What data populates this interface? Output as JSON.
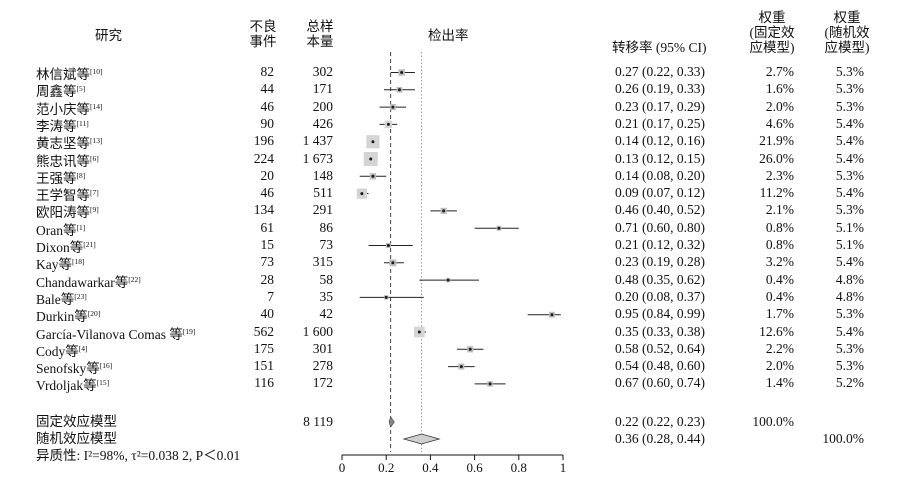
{
  "headers": {
    "study": "研究",
    "events_l1": "不良",
    "events_l2": "事件",
    "total_l1": "总样",
    "total_l2": "本量",
    "plot": "检出率",
    "rate": "转移率 (95% CI)",
    "wf_l1": "权重",
    "wf_l2": "(固定效",
    "wf_l3": "应模型)",
    "wr_l1": "权重",
    "wr_l2": "(随机效",
    "wr_l3": "应模型)"
  },
  "studies": [
    {
      "name": "林信斌等",
      "ref": "[10]",
      "events": "82",
      "total": "302",
      "ci": "0.27 (0.22, 0.33)",
      "w_fixed": "2.7%",
      "w_random": "5.3%"
    },
    {
      "name": "周鑫等",
      "ref": "[5]",
      "events": "44",
      "total": "171",
      "ci": "0.26 (0.19, 0.33)",
      "w_fixed": "1.6%",
      "w_random": "5.3%"
    },
    {
      "name": "范小庆等",
      "ref": "[14]",
      "events": "46",
      "total": "200",
      "ci": "0.23 (0.17, 0.29)",
      "w_fixed": "2.0%",
      "w_random": "5.3%"
    },
    {
      "name": "李涛等",
      "ref": "[11]",
      "events": "90",
      "total": "426",
      "ci": "0.21 (0.17, 0.25)",
      "w_fixed": "4.6%",
      "w_random": "5.4%"
    },
    {
      "name": "黄志坚等",
      "ref": "[13]",
      "events": "196",
      "total": "1 437",
      "ci": "0.14 (0.12, 0.16)",
      "w_fixed": "21.9%",
      "w_random": "5.4%"
    },
    {
      "name": "熊忠讯等",
      "ref": "[6]",
      "events": "224",
      "total": "1 673",
      "ci": "0.13 (0.12, 0.15)",
      "w_fixed": "26.0%",
      "w_random": "5.4%"
    },
    {
      "name": "王强等",
      "ref": "[8]",
      "events": "20",
      "total": "148",
      "ci": "0.14 (0.08, 0.20)",
      "w_fixed": "2.3%",
      "w_random": "5.3%"
    },
    {
      "name": "王学智等",
      "ref": "[7]",
      "events": "46",
      "total": "511",
      "ci": "0.09 (0.07, 0.12)",
      "w_fixed": "11.2%",
      "w_random": "5.4%"
    },
    {
      "name": "欧阳涛等",
      "ref": "[9]",
      "events": "134",
      "total": "291",
      "ci": "0.46 (0.40, 0.52)",
      "w_fixed": "2.1%",
      "w_random": "5.3%"
    },
    {
      "name": "Oran等",
      "ref": "[1]",
      "events": "61",
      "total": "86",
      "ci": "0.71 (0.60, 0.80)",
      "w_fixed": "0.8%",
      "w_random": "5.1%"
    },
    {
      "name": "Dixon等",
      "ref": "[21]",
      "events": "15",
      "total": "73",
      "ci": "0.21 (0.12, 0.32)",
      "w_fixed": "0.8%",
      "w_random": "5.1%"
    },
    {
      "name": "Kay等",
      "ref": "[18]",
      "events": "73",
      "total": "315",
      "ci": "0.23 (0.19, 0.28)",
      "w_fixed": "3.2%",
      "w_random": "5.4%"
    },
    {
      "name": "Chandawarkar等",
      "ref": "[22]",
      "events": "28",
      "total": "58",
      "ci": "0.48 (0.35, 0.62)",
      "w_fixed": "0.4%",
      "w_random": "4.8%"
    },
    {
      "name": "Bale等",
      "ref": "[23]",
      "events": "7",
      "total": "35",
      "ci": "0.20 (0.08, 0.37)",
      "w_fixed": "0.4%",
      "w_random": "4.8%"
    },
    {
      "name": "Durkin等",
      "ref": "[20]",
      "events": "40",
      "total": "42",
      "ci": "0.95 (0.84, 0.99)",
      "w_fixed": "1.7%",
      "w_random": "5.3%"
    },
    {
      "name": "García-Vilanova Comas 等",
      "ref": "[19]",
      "events": "562",
      "total": "1 600",
      "ci": "0.35 (0.33, 0.38)",
      "w_fixed": "12.6%",
      "w_random": "5.4%"
    },
    {
      "name": "Cody等",
      "ref": "[4]",
      "events": "175",
      "total": "301",
      "ci": "0.58 (0.52, 0.64)",
      "w_fixed": "2.2%",
      "w_random": "5.3%"
    },
    {
      "name": "Senofsky等",
      "ref": "[16]",
      "events": "151",
      "total": "278",
      "ci": "0.54 (0.48, 0.60)",
      "w_fixed": "2.0%",
      "w_random": "5.3%"
    },
    {
      "name": "Vrdoljak等",
      "ref": "[15]",
      "events": "116",
      "total": "172",
      "ci": "0.67 (0.60, 0.74)",
      "w_fixed": "1.4%",
      "w_random": "5.2%"
    }
  ],
  "summary": {
    "fixed_label": "固定效应模型",
    "fixed_total": "8 119",
    "fixed_ci": "0.22 (0.22, 0.23)",
    "fixed_weight": "100.0%",
    "random_label": "随机效应模型",
    "random_ci": "0.36 (0.28, 0.44)",
    "random_weight": "100.0%",
    "heterogeneity": "异质性: I²=98%, τ²=0.038 2, P＜0.01"
  },
  "chart_data": {
    "type": "forest",
    "xlim": [
      0,
      1
    ],
    "ticks": [
      "0",
      "0.2",
      "0.4",
      "0.6",
      "0.8",
      "1"
    ],
    "tick_values": [
      0,
      0.2,
      0.4,
      0.6,
      0.8,
      1
    ],
    "estimates": [
      0.27,
      0.26,
      0.23,
      0.21,
      0.14,
      0.13,
      0.14,
      0.09,
      0.46,
      0.71,
      0.21,
      0.23,
      0.48,
      0.2,
      0.95,
      0.35,
      0.58,
      0.54,
      0.67
    ],
    "lower": [
      0.22,
      0.19,
      0.17,
      0.17,
      0.12,
      0.12,
      0.08,
      0.07,
      0.4,
      0.6,
      0.12,
      0.19,
      0.35,
      0.08,
      0.84,
      0.33,
      0.52,
      0.48,
      0.6
    ],
    "upper": [
      0.33,
      0.33,
      0.29,
      0.25,
      0.16,
      0.15,
      0.2,
      0.12,
      0.52,
      0.8,
      0.32,
      0.28,
      0.62,
      0.37,
      0.99,
      0.38,
      0.64,
      0.6,
      0.74
    ],
    "fixed_weight_pct": [
      2.7,
      1.6,
      2.0,
      4.6,
      21.9,
      26.0,
      2.3,
      11.2,
      2.1,
      0.8,
      0.8,
      3.2,
      0.4,
      0.4,
      1.7,
      12.6,
      2.2,
      2.0,
      1.4
    ],
    "fixed_effect": {
      "est": 0.22,
      "lower": 0.22,
      "upper": 0.23
    },
    "random_effect": {
      "est": 0.36,
      "lower": 0.28,
      "upper": 0.44
    },
    "colors": {
      "box_large": "#d4d4d4",
      "marker": "#1a1a1a",
      "diamond": "#cfcfcf"
    }
  }
}
